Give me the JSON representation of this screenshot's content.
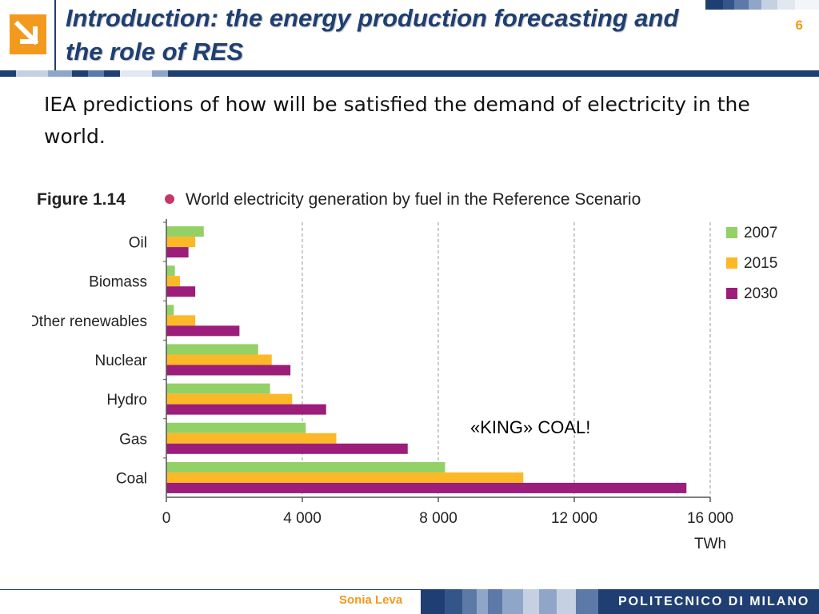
{
  "header": {
    "title_prefix": "Introduction:",
    "title_rest": " the energy production forecasting and the role of RES",
    "page_number": "6"
  },
  "intro_text": "IEA predictions of how will be satisfied the demand of electricity in the world.",
  "annotation": "«KING» COAL!",
  "footer": {
    "author": "Sonia Leva",
    "brand": "POLITECNICO DI MILANO"
  },
  "colors": {
    "brand_blue": "#1f3f72",
    "accent_orange": "#f39a1e",
    "series_2007": "#93d066",
    "series_2015": "#fdb827",
    "series_2030": "#9c1d7a"
  },
  "chart_data": {
    "type": "bar",
    "orientation": "horizontal",
    "figure_label": "Figure 1.14",
    "title": "World electricity generation by fuel in the Reference Scenario",
    "categories": [
      "Oil",
      "Biomass",
      "Other renewables",
      "Nuclear",
      "Hydro",
      "Gas",
      "Coal"
    ],
    "series": [
      {
        "name": "2007",
        "color": "#93d066",
        "values": [
          1100,
          250,
          220,
          2700,
          3050,
          4100,
          8200
        ]
      },
      {
        "name": "2015",
        "color": "#fdb827",
        "values": [
          850,
          400,
          850,
          3100,
          3700,
          5000,
          10500
        ]
      },
      {
        "name": "2030",
        "color": "#9c1d7a",
        "values": [
          650,
          850,
          2150,
          3650,
          4700,
          7100,
          15300
        ]
      }
    ],
    "xlabel": "TWh",
    "xlim": [
      0,
      16000
    ],
    "xticks": [
      0,
      4000,
      8000,
      12000,
      16000
    ],
    "xtick_labels": [
      "0",
      "4 000",
      "8 000",
      "12 000",
      "16 000"
    ],
    "grid": "vertical dashed",
    "legend": "top-right"
  }
}
